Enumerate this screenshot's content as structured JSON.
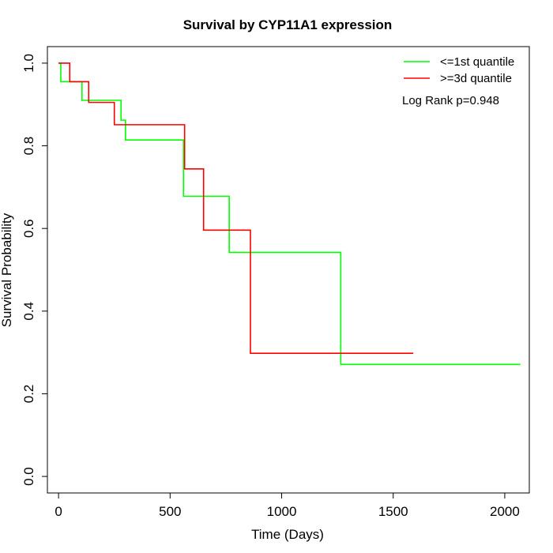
{
  "chart_data": {
    "type": "line",
    "title": "Survival by CYP11A1 expression",
    "xlabel": "Time (Days)",
    "ylabel": "Survival Probability",
    "xlim": [
      -50,
      2110
    ],
    "ylim": [
      -0.04,
      1.04
    ],
    "x_ticks": [
      0,
      500,
      1000,
      1500,
      2000
    ],
    "y_ticks": [
      0.0,
      0.2,
      0.4,
      0.6,
      0.8,
      1.0
    ],
    "x_tick_labels": [
      "0",
      "500",
      "1000",
      "1500",
      "2000"
    ],
    "y_tick_labels": [
      "0.0",
      "0.2",
      "0.4",
      "0.6",
      "0.8",
      "1.0"
    ],
    "grid": false,
    "legend_position": "top-right",
    "annotation": "Log Rank p=0.948",
    "series": [
      {
        "name": "<=1st quantile",
        "color": "#00ff00",
        "step": true,
        "x": [
          0,
          10,
          105,
          280,
          300,
          560,
          765,
          1265,
          2070
        ],
        "y": [
          1.0,
          0.955,
          0.91,
          0.862,
          0.814,
          0.678,
          0.542,
          0.271,
          0.271
        ]
      },
      {
        "name": ">=3d quantile",
        "color": "#ff0000",
        "step": true,
        "x": [
          0,
          50,
          135,
          250,
          565,
          650,
          860,
          1590
        ],
        "y": [
          1.0,
          0.955,
          0.905,
          0.851,
          0.744,
          0.596,
          0.298,
          0.298
        ]
      }
    ]
  }
}
